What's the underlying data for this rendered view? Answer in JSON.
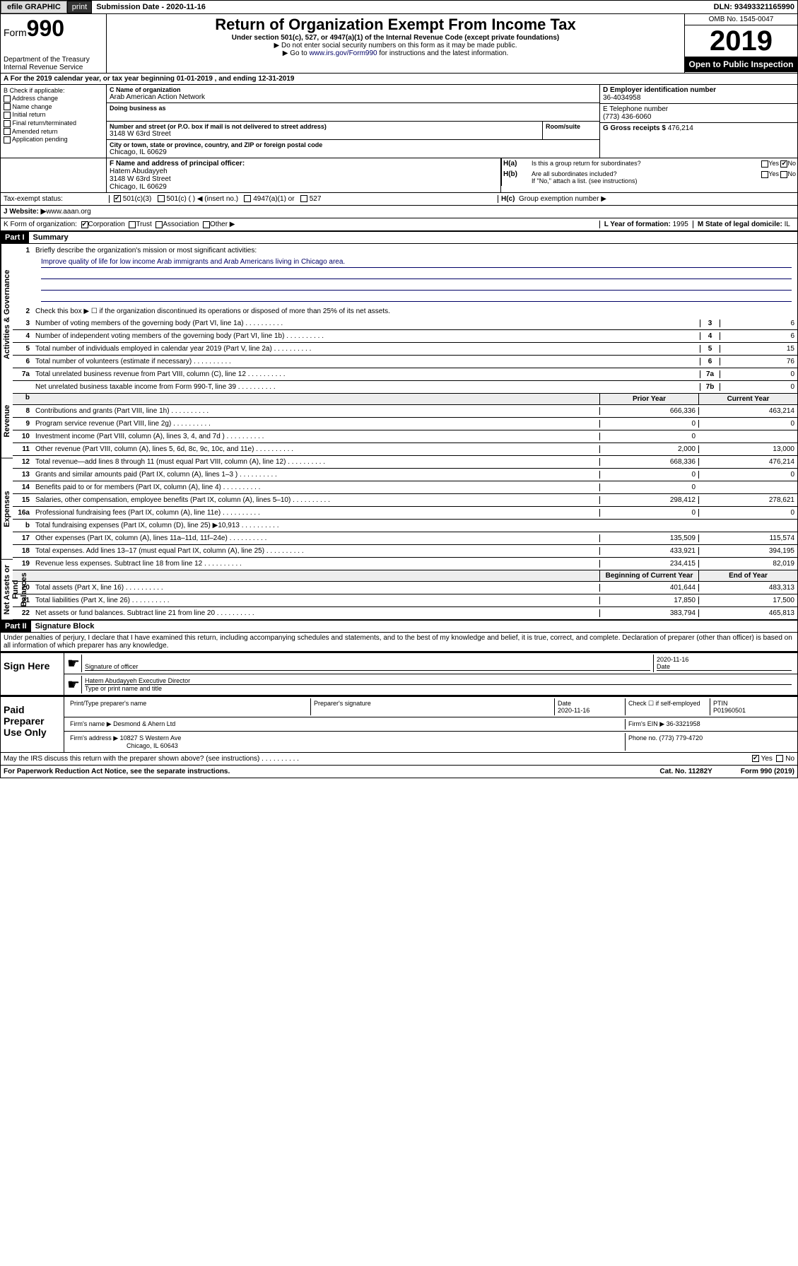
{
  "topbar": {
    "efile": "efile GRAPHIC",
    "print": "print",
    "subdate_label": "Submission Date - ",
    "subdate": "2020-11-16",
    "dln_label": "DLN: ",
    "dln": "93493321165990"
  },
  "header": {
    "form_prefix": "Form",
    "form_num": "990",
    "dept": "Department of the Treasury\nInternal Revenue Service",
    "title": "Return of Organization Exempt From Income Tax",
    "sub": "Under section 501(c), 527, or 4947(a)(1) of the Internal Revenue Code (except private foundations)",
    "note1": "▶ Do not enter social security numbers on this form as it may be made public.",
    "note2_pre": "▶ Go to ",
    "note2_link": "www.irs.gov/Form990",
    "note2_post": " for instructions and the latest information.",
    "omb": "OMB No. 1545-0047",
    "year": "2019",
    "open": "Open to Public Inspection"
  },
  "rowA": "A   For the 2019 calendar year, or tax year beginning 01-01-2019    , and ending 12-31-2019",
  "colB": {
    "title": "B Check if applicable:",
    "items": [
      "Address change",
      "Name change",
      "Initial return",
      "Final return/terminated",
      "Amended return",
      "Application pending"
    ]
  },
  "colC": {
    "name_label": "C Name of organization",
    "name": "Arab American Action Network",
    "dba_label": "Doing business as",
    "addr_label": "Number and street (or P.O. box if mail is not delivered to street address)",
    "room_label": "Room/suite",
    "addr": "3148 W 63rd Street",
    "city_label": "City or town, state or province, country, and ZIP or foreign postal code",
    "city": "Chicago, IL  60629"
  },
  "colD": {
    "label": "D Employer identification number",
    "val": "36-4034958"
  },
  "colE": {
    "label": "E Telephone number",
    "val": "(773) 436-6060"
  },
  "colG": {
    "label": "G Gross receipts $ ",
    "val": "476,214"
  },
  "colF": {
    "label": "F  Name and address of principal officer:",
    "name": "Hatem Abudayyeh",
    "addr1": "3148 W 63rd Street",
    "addr2": "Chicago, IL  60629"
  },
  "colH": {
    "a": "Is this a group return for subordinates?",
    "b": "Are all subordinates included?",
    "bnote": "If \"No,\" attach a list. (see instructions)",
    "c": "Group exemption number ▶"
  },
  "taxStatus": {
    "label": "Tax-exempt status:",
    "opts": [
      "501(c)(3)",
      "501(c) (   ) ◀ (insert no.)",
      "4947(a)(1) or",
      "527"
    ]
  },
  "rowJ": {
    "label": "J    Website: ▶  ",
    "val": "www.aaan.org"
  },
  "rowK": {
    "label": "K Form of organization:",
    "opts": [
      "Corporation",
      "Trust",
      "Association",
      "Other ▶"
    ],
    "l_label": "L Year of formation: ",
    "l_val": "1995",
    "m_label": "M State of legal domicile: ",
    "m_val": "IL"
  },
  "part1": {
    "hdr": "Part I",
    "title": "Summary",
    "sideLabels": [
      "Activities & Governance",
      "Revenue",
      "Expenses",
      "Net Assets or Fund Balances"
    ],
    "l1": "Briefly describe the organization's mission or most significant activities:",
    "mission": "Improve quality of life for low income Arab immigrants and Arab Americans living in Chicago area.",
    "l2": "Check this box ▶ ☐  if the organization discontinued its operations or disposed of more than 25% of its net assets.",
    "lines_gov": [
      {
        "n": "3",
        "t": "Number of voting members of the governing body (Part VI, line 1a)",
        "bn": "3",
        "v": "6"
      },
      {
        "n": "4",
        "t": "Number of independent voting members of the governing body (Part VI, line 1b)",
        "bn": "4",
        "v": "6"
      },
      {
        "n": "5",
        "t": "Total number of individuals employed in calendar year 2019 (Part V, line 2a)",
        "bn": "5",
        "v": "15"
      },
      {
        "n": "6",
        "t": "Total number of volunteers (estimate if necessary)",
        "bn": "6",
        "v": "76"
      },
      {
        "n": "7a",
        "t": "Total unrelated business revenue from Part VIII, column (C), line 12",
        "bn": "7a",
        "v": "0"
      },
      {
        "n": "",
        "t": "Net unrelated business taxable income from Form 990-T, line 39",
        "bn": "7b",
        "v": "0"
      }
    ],
    "hdr_prior": "Prior Year",
    "hdr_curr": "Current Year",
    "lines_rev": [
      {
        "n": "8",
        "t": "Contributions and grants (Part VIII, line 1h)",
        "p": "666,336",
        "c": "463,214"
      },
      {
        "n": "9",
        "t": "Program service revenue (Part VIII, line 2g)",
        "p": "0",
        "c": "0"
      },
      {
        "n": "10",
        "t": "Investment income (Part VIII, column (A), lines 3, 4, and 7d )",
        "p": "0",
        "c": ""
      },
      {
        "n": "11",
        "t": "Other revenue (Part VIII, column (A), lines 5, 6d, 8c, 9c, 10c, and 11e)",
        "p": "2,000",
        "c": "13,000"
      },
      {
        "n": "12",
        "t": "Total revenue—add lines 8 through 11 (must equal Part VIII, column (A), line 12)",
        "p": "668,336",
        "c": "476,214"
      }
    ],
    "lines_exp": [
      {
        "n": "13",
        "t": "Grants and similar amounts paid (Part IX, column (A), lines 1–3 )",
        "p": "0",
        "c": "0"
      },
      {
        "n": "14",
        "t": "Benefits paid to or for members (Part IX, column (A), line 4)",
        "p": "0",
        "c": ""
      },
      {
        "n": "15",
        "t": "Salaries, other compensation, employee benefits (Part IX, column (A), lines 5–10)",
        "p": "298,412",
        "c": "278,621"
      },
      {
        "n": "16a",
        "t": "Professional fundraising fees (Part IX, column (A), line 11e)",
        "p": "0",
        "c": "0"
      },
      {
        "n": "b",
        "t": "Total fundraising expenses (Part IX, column (D), line 25) ▶10,913",
        "p": "",
        "c": "",
        "shaded": true
      },
      {
        "n": "17",
        "t": "Other expenses (Part IX, column (A), lines 11a–11d, 11f–24e)",
        "p": "135,509",
        "c": "115,574"
      },
      {
        "n": "18",
        "t": "Total expenses. Add lines 13–17 (must equal Part IX, column (A), line 25)",
        "p": "433,921",
        "c": "394,195"
      },
      {
        "n": "19",
        "t": "Revenue less expenses. Subtract line 18 from line 12",
        "p": "234,415",
        "c": "82,019"
      }
    ],
    "hdr_beg": "Beginning of Current Year",
    "hdr_end": "End of Year",
    "lines_net": [
      {
        "n": "20",
        "t": "Total assets (Part X, line 16)",
        "p": "401,644",
        "c": "483,313"
      },
      {
        "n": "21",
        "t": "Total liabilities (Part X, line 26)",
        "p": "17,850",
        "c": "17,500"
      },
      {
        "n": "22",
        "t": "Net assets or fund balances. Subtract line 21 from line 20",
        "p": "383,794",
        "c": "465,813"
      }
    ]
  },
  "part2": {
    "hdr": "Part II",
    "title": "Signature Block",
    "decl": "Under penalties of perjury, I declare that I have examined this return, including accompanying schedules and statements, and to the best of my knowledge and belief, it is true, correct, and complete. Declaration of preparer (other than officer) is based on all information of which preparer has any knowledge.",
    "sign_here": "Sign Here",
    "sig_officer": "Signature of officer",
    "sig_date": "2020-11-16",
    "date_label": "Date",
    "officer_name": "Hatem Abudayyeh  Executive Director",
    "type_label": "Type or print name and title",
    "paid": "Paid Preparer Use Only",
    "prep_name_label": "Print/Type preparer's name",
    "prep_sig_label": "Preparer's signature",
    "prep_date": "2020-11-16",
    "self_emp": "Check ☐ if self-employed",
    "ptin_label": "PTIN",
    "ptin": "P01960501",
    "firm_name_label": "Firm's name     ▶ ",
    "firm_name": "Desmond & Ahern Ltd",
    "firm_ein_label": "Firm's EIN ▶ ",
    "firm_ein": "36-3321958",
    "firm_addr_label": "Firm's address ▶ ",
    "firm_addr": "10827 S Western Ave",
    "firm_city": "Chicago, IL  60643",
    "phone_label": "Phone no. ",
    "phone": "(773) 779-4720",
    "discuss": "May the IRS discuss this return with the preparer shown above? (see instructions)"
  },
  "footer": {
    "pra": "For Paperwork Reduction Act Notice, see the separate instructions.",
    "cat": "Cat. No. 11282Y",
    "form": "Form 990 (2019)"
  }
}
